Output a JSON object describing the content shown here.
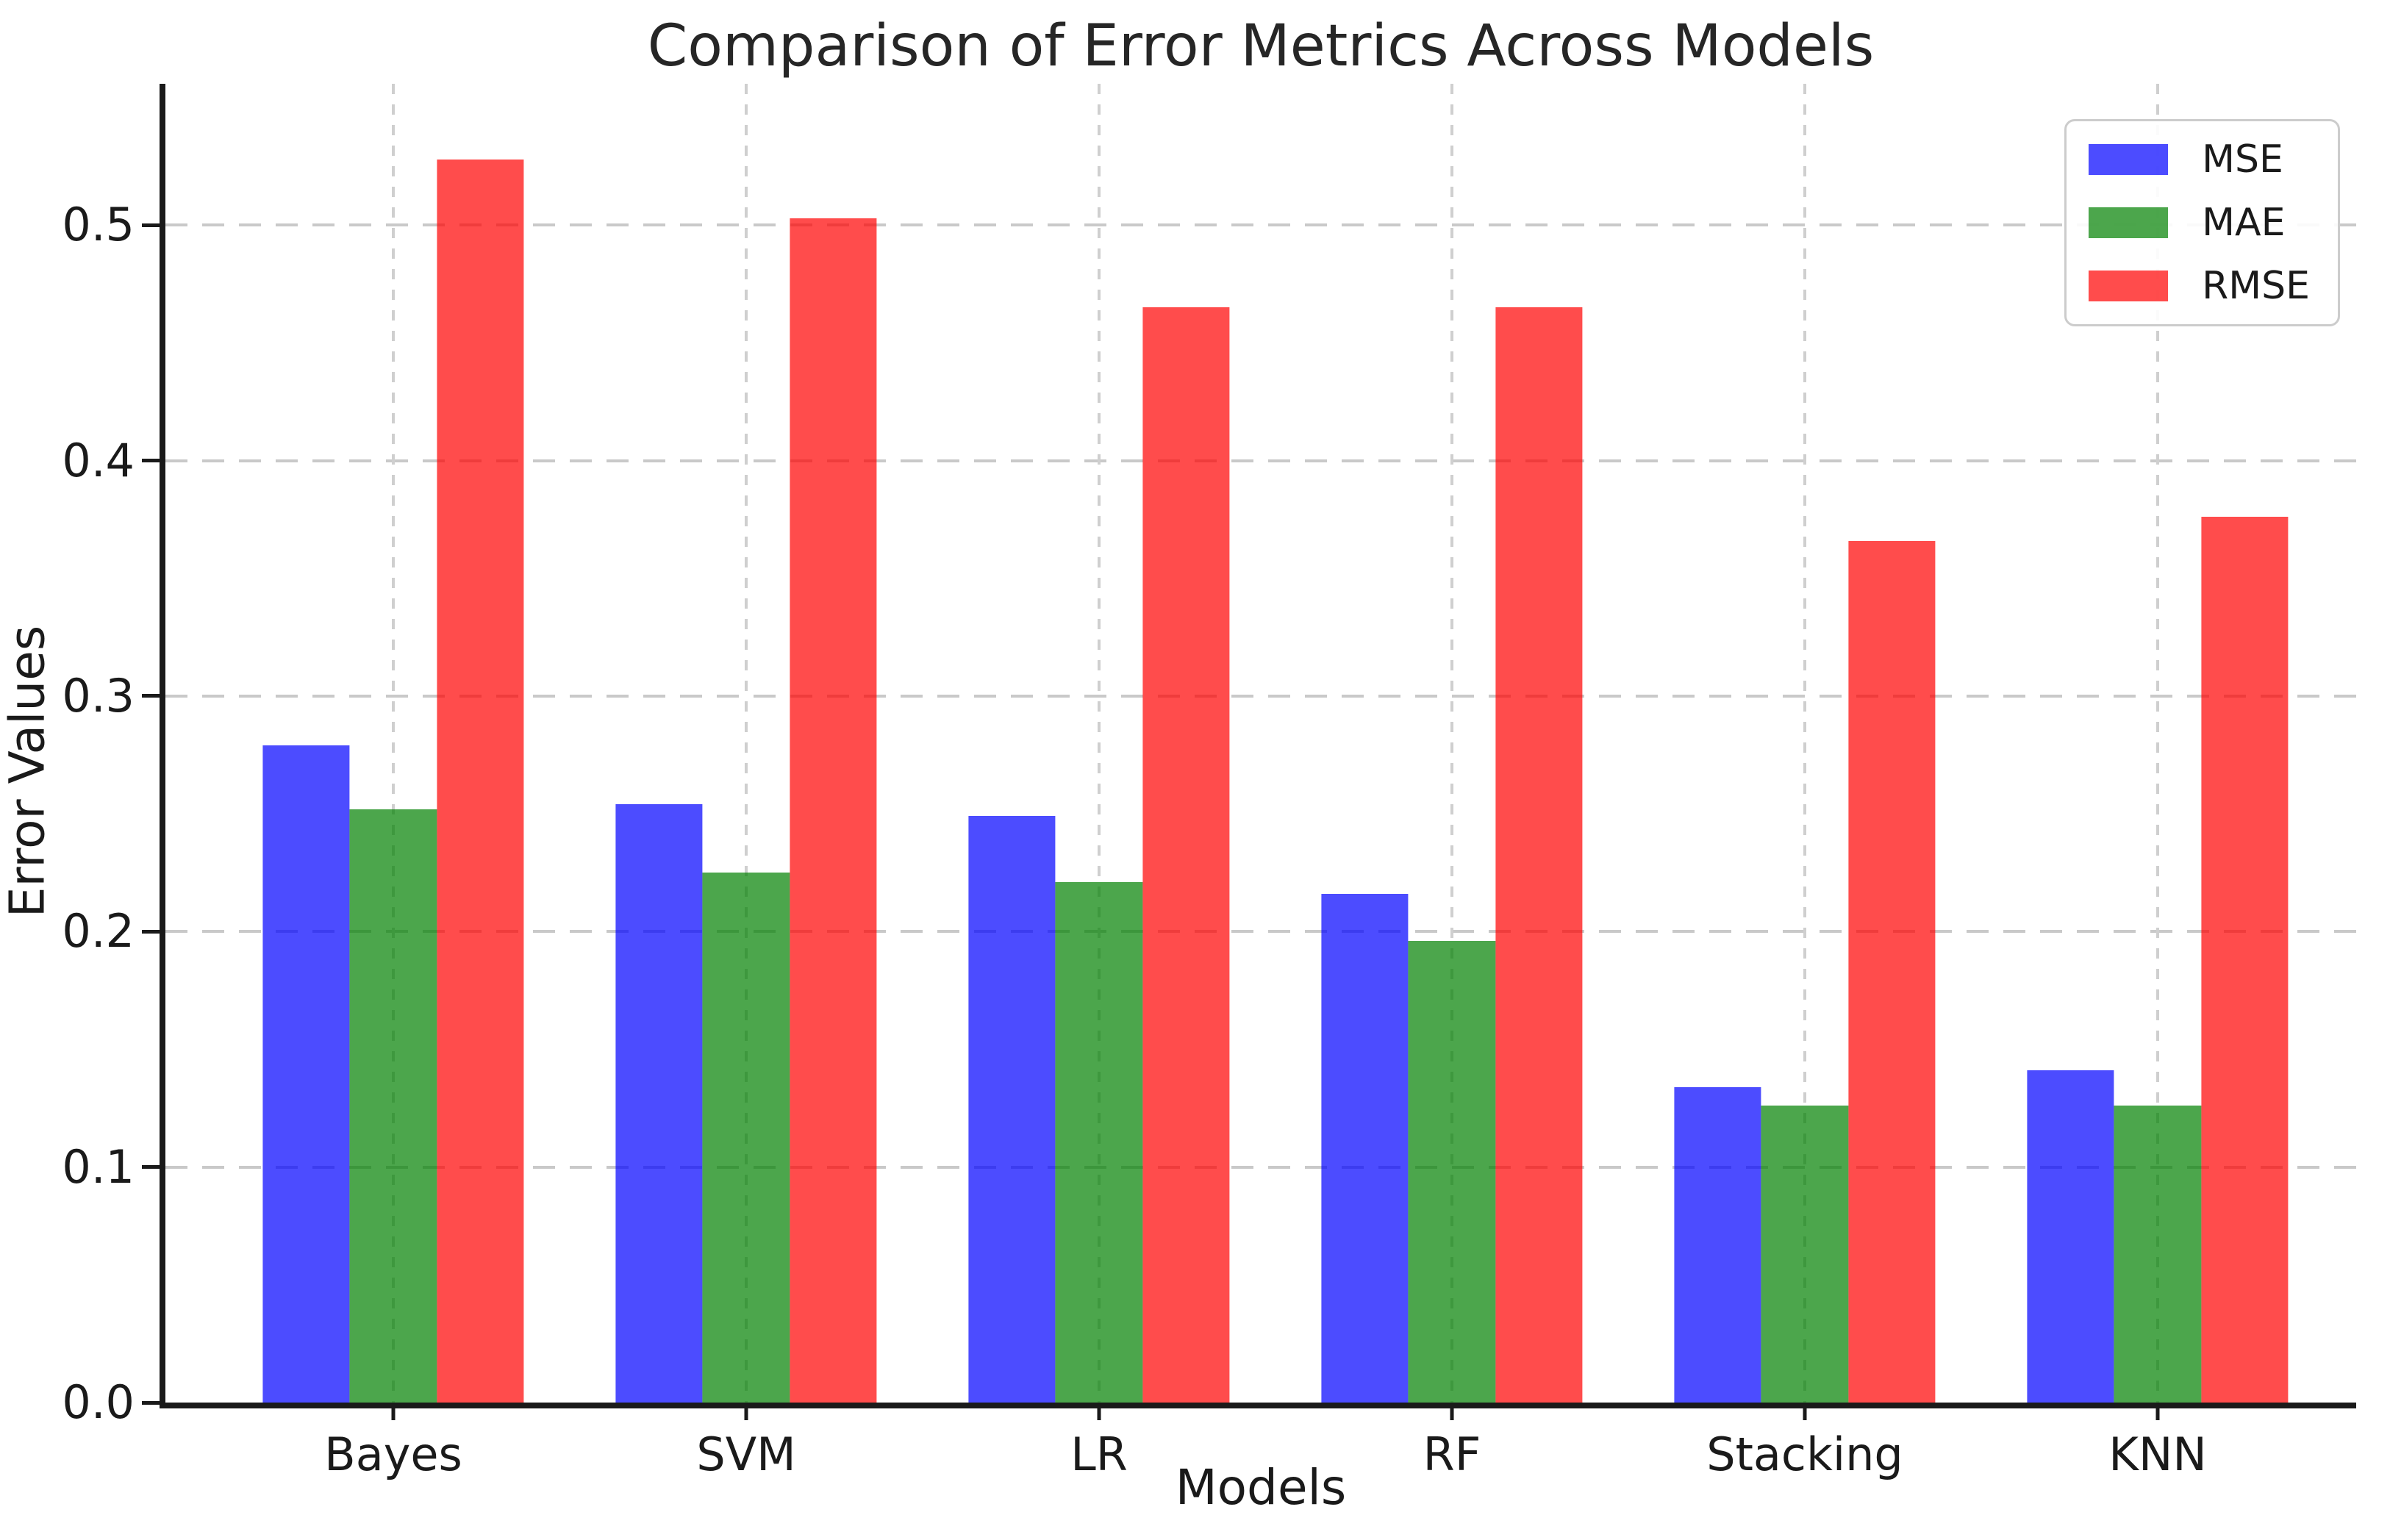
{
  "chart_data": {
    "type": "bar",
    "title": "Comparison of Error Metrics Across Models",
    "xlabel": "Models",
    "ylabel": "Error Values",
    "categories": [
      "Bayes",
      "SVM",
      "LR",
      "RF",
      "Stacking",
      "KNN"
    ],
    "series": [
      {
        "name": "MSE",
        "color": "rgba(0,0,255,0.7)",
        "values": [
          0.279,
          0.254,
          0.249,
          0.216,
          0.134,
          0.141
        ]
      },
      {
        "name": "MAE",
        "color": "rgba(0,128,0,0.7)",
        "values": [
          0.252,
          0.225,
          0.221,
          0.196,
          0.126,
          0.126
        ]
      },
      {
        "name": "RMSE",
        "color": "rgba(255,0,0,0.7)",
        "values": [
          0.528,
          0.503,
          0.465,
          0.465,
          0.366,
          0.376
        ]
      }
    ],
    "yticks": [
      0.0,
      0.1,
      0.2,
      0.3,
      0.4,
      0.5
    ],
    "ytick_labels": [
      "0.0",
      "0.1",
      "0.2",
      "0.3",
      "0.4",
      "0.5"
    ],
    "ylim": [
      0,
      0.56
    ],
    "grid": true,
    "legend_position": "upper right",
    "grid_color": "#cccccc",
    "axis_color": "#1a1a1a"
  }
}
